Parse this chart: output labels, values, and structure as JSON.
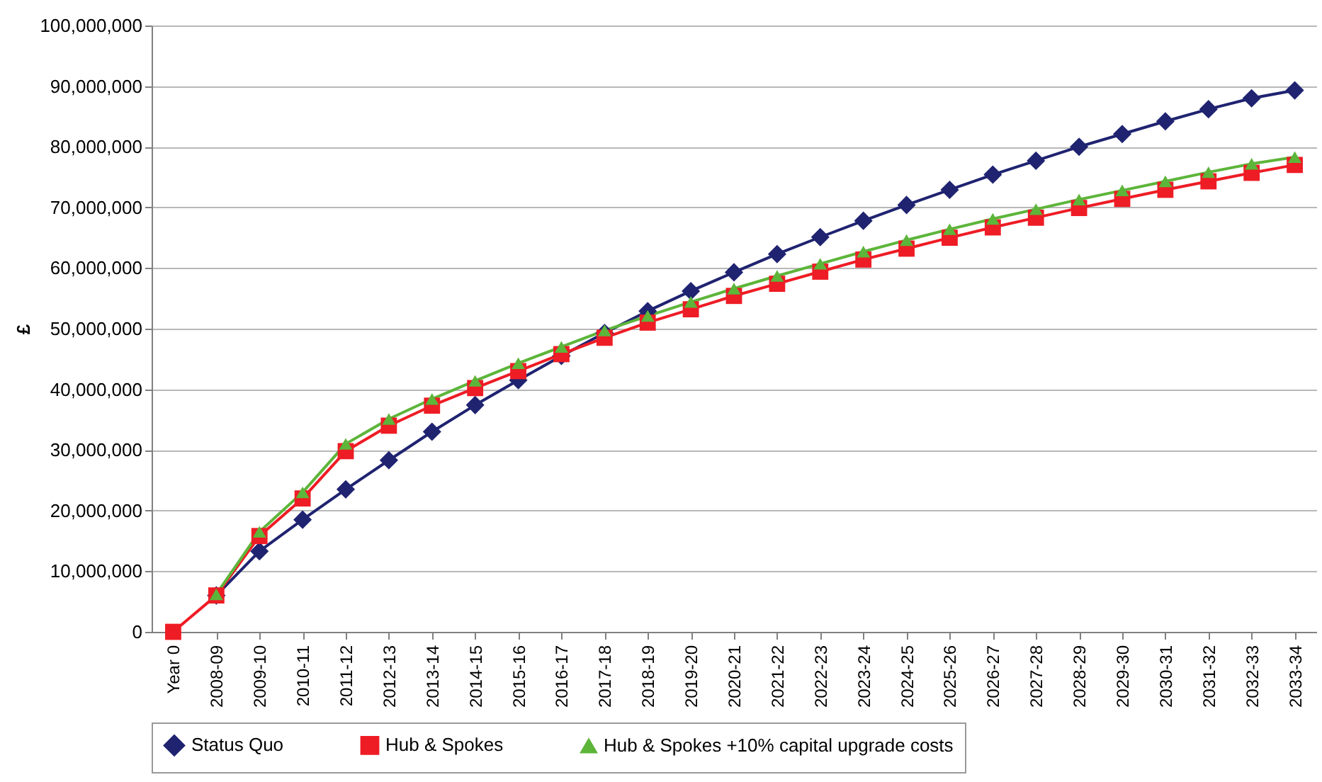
{
  "chart_data": {
    "type": "line",
    "ylabel": "£",
    "categories": [
      "Year 0",
      "2008-09",
      "2009-10",
      "2010-11",
      "2011-12",
      "2012-13",
      "2013-14",
      "2014-15",
      "2015-16",
      "2016-17",
      "2017-18",
      "2018-19",
      "2019-20",
      "2020-21",
      "2021-22",
      "2022-23",
      "2023-24",
      "2024-25",
      "2025-26",
      "2026-27",
      "2027-28",
      "2028-29",
      "2029-30",
      "2030-31",
      "2031-32",
      "2032-33",
      "2033-34"
    ],
    "series": [
      {
        "name": "Status Quo",
        "color": "#1f2370",
        "marker": "diamond",
        "values": [
          null,
          6000000,
          13300000,
          18500000,
          23500000,
          28300000,
          33000000,
          37400000,
          41500000,
          45500000,
          49300000,
          52900000,
          56200000,
          59300000,
          62300000,
          65100000,
          67800000,
          70400000,
          72900000,
          75400000,
          77700000,
          80000000,
          82100000,
          84200000,
          86200000,
          88000000,
          89300000
        ]
      },
      {
        "name": "Hub & Spokes",
        "color": "#ee1c25",
        "marker": "square",
        "values": [
          0,
          6000000,
          15800000,
          22000000,
          29800000,
          34000000,
          37300000,
          40200000,
          43000000,
          45800000,
          48500000,
          51000000,
          53200000,
          55400000,
          57400000,
          59400000,
          61400000,
          63200000,
          65000000,
          66700000,
          68300000,
          69900000,
          71400000,
          72900000,
          74300000,
          75700000,
          77000000
        ]
      },
      {
        "name": "Hub & Spokes +10% capital upgrade costs",
        "color": "#5db53a",
        "marker": "triangle",
        "values": [
          null,
          6200000,
          16500000,
          23000000,
          31000000,
          35100000,
          38400000,
          41400000,
          44300000,
          47000000,
          49700000,
          52100000,
          54400000,
          56600000,
          58700000,
          60700000,
          62700000,
          64600000,
          66400000,
          68100000,
          69700000,
          71300000,
          72800000,
          74300000,
          75800000,
          77200000,
          78300000
        ]
      }
    ],
    "ylim": [
      0,
      100000000
    ],
    "yticks": [
      {
        "value": 0,
        "label": "0"
      },
      {
        "value": 10000000,
        "label": "10,000,000"
      },
      {
        "value": 20000000,
        "label": "20,000,000"
      },
      {
        "value": 30000000,
        "label": "30,000,000"
      },
      {
        "value": 40000000,
        "label": "40,000,000"
      },
      {
        "value": 50000000,
        "label": "50,000,000"
      },
      {
        "value": 60000000,
        "label": "60,000,000"
      },
      {
        "value": 70000000,
        "label": "70,000,000"
      },
      {
        "value": 80000000,
        "label": "80,000,000"
      },
      {
        "value": 90000000,
        "label": "90,000,000"
      },
      {
        "value": 100000000,
        "label": "100,000,000"
      }
    ],
    "grid": "y",
    "legend": "bottom",
    "line_style": "solid"
  }
}
